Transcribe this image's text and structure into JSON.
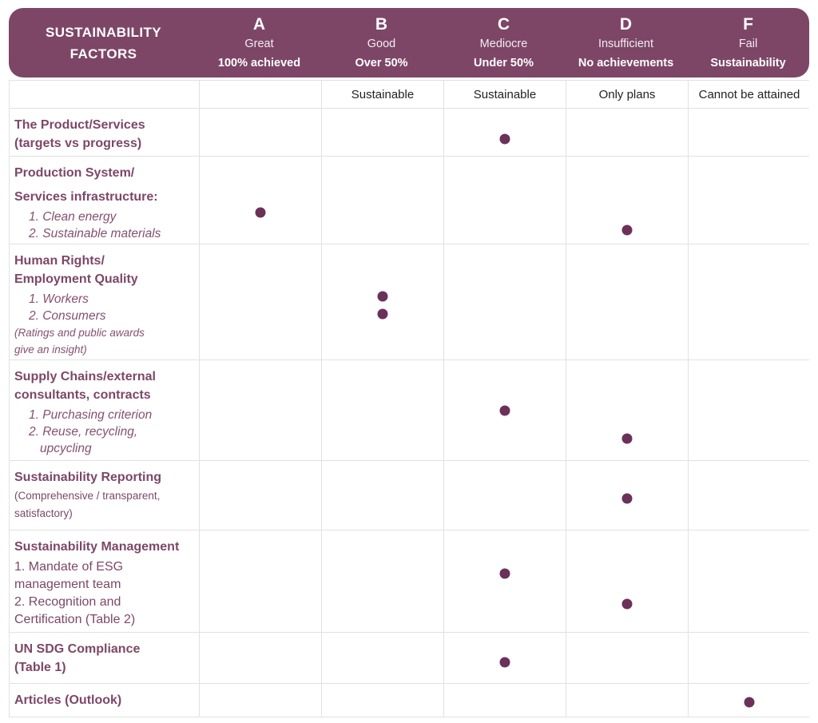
{
  "colors": {
    "band": "#7d4667",
    "label_text": "#7d4768",
    "dot": "#6b3158",
    "grid": "#e1e1e3",
    "subheader_text": "#222222"
  },
  "header": {
    "title_line1": "SUSTAINABILITY",
    "title_line2": "FACTORS",
    "grades": [
      {
        "letter": "A",
        "name": "Great",
        "detail": "100% achieved",
        "sub": ""
      },
      {
        "letter": "B",
        "name": "Good",
        "detail": "Over 50%",
        "sub": "Sustainable"
      },
      {
        "letter": "C",
        "name": "Mediocre",
        "detail": "Under 50%",
        "sub": "Sustainable"
      },
      {
        "letter": "D",
        "name": "Insufficient",
        "detail": "No achievements",
        "sub": "Only plans"
      },
      {
        "letter": "F",
        "name": "Fail",
        "detail": "Sustainability",
        "sub": "Cannot be attained"
      }
    ]
  },
  "rows": [
    {
      "lines": [
        {
          "text": "The Product/Services",
          "style": "h"
        },
        {
          "text": "(targets vs progress)",
          "style": "h"
        }
      ],
      "dots": [
        {
          "col": "C",
          "v": 0.63
        }
      ]
    },
    {
      "lines": [
        {
          "text": "Production System/",
          "style": "h"
        },
        {
          "text": "Services infrastructure:",
          "style": "h2"
        },
        {
          "text": "1. Clean energy",
          "style": "i"
        },
        {
          "text": "2. Sustainable materials",
          "style": "i"
        }
      ],
      "dots": [
        {
          "col": "A",
          "v": 0.64
        },
        {
          "col": "D",
          "v": 0.84
        }
      ]
    },
    {
      "lines": [
        {
          "text": "Human Rights/",
          "style": "h"
        },
        {
          "text": "Employment Quality",
          "style": "h"
        },
        {
          "text": "1. Workers",
          "style": "i"
        },
        {
          "text": "2. Consumers",
          "style": "i"
        },
        {
          "text": "(Ratings and public awards",
          "style": "n"
        },
        {
          "text": "give an insight)",
          "style": "n"
        }
      ],
      "dots": [
        {
          "col": "B",
          "v": 0.45
        },
        {
          "col": "B",
          "v": 0.6
        }
      ]
    },
    {
      "lines": [
        {
          "text": "Supply Chains/external",
          "style": "h"
        },
        {
          "text": "consultants, contracts",
          "style": "h"
        },
        {
          "text": "1. Purchasing  criterion",
          "style": "i"
        },
        {
          "text": "2. Reuse, recycling,",
          "style": "i"
        },
        {
          "text": "upcycling",
          "style": "i2"
        }
      ],
      "dots": [
        {
          "col": "C",
          "v": 0.5
        },
        {
          "col": "D",
          "v": 0.78
        }
      ]
    },
    {
      "lines": [
        {
          "text": "Sustainability Reporting",
          "style": "h"
        },
        {
          "text": "(Comprehensive / transparent,",
          "style": "np"
        },
        {
          "text": "satisfactory)",
          "style": "np"
        }
      ],
      "dots": [
        {
          "col": "D",
          "v": 0.54
        }
      ]
    },
    {
      "lines": [
        {
          "text": "Sustainability Management",
          "style": "h"
        },
        {
          "text": "1. Mandate of ESG",
          "style": "p"
        },
        {
          "text": "management team",
          "style": "p"
        },
        {
          "text": "2. Recognition and",
          "style": "p"
        },
        {
          "text": "Certification (Table 2)",
          "style": "p"
        }
      ],
      "dots": [
        {
          "col": "C",
          "v": 0.42
        },
        {
          "col": "D",
          "v": 0.72
        }
      ]
    },
    {
      "lines": [
        {
          "text": "UN SDG Compliance",
          "style": "h"
        },
        {
          "text": "(Table 1)",
          "style": "h"
        }
      ],
      "dots": [
        {
          "col": "C",
          "v": 0.58
        }
      ]
    },
    {
      "lines": [
        {
          "text": "Articles (Outlook)",
          "style": "h"
        }
      ],
      "dots": [
        {
          "col": "F",
          "v": 0.55
        }
      ]
    }
  ],
  "chart_data": {
    "type": "table",
    "title": "SUSTAINABILITY FACTORS",
    "columns": [
      {
        "grade": "A",
        "meaning": "Great",
        "criteria": "100% achieved"
      },
      {
        "grade": "B",
        "meaning": "Good",
        "criteria": "Over 50% Sustainable"
      },
      {
        "grade": "C",
        "meaning": "Mediocre",
        "criteria": "Under 50% Sustainable"
      },
      {
        "grade": "D",
        "meaning": "Insufficient",
        "criteria": "No achievements, Only plans"
      },
      {
        "grade": "F",
        "meaning": "Fail",
        "criteria": "Sustainability Cannot be attained"
      }
    ],
    "rows": [
      {
        "factor": "The Product/Services (targets vs progress)",
        "marks": [
          "C"
        ]
      },
      {
        "factor": "Production System/Services infrastructure: 1. Clean energy 2. Sustainable materials",
        "marks": [
          "A",
          "D"
        ]
      },
      {
        "factor": "Human Rights/Employment Quality 1. Workers 2. Consumers (Ratings and public awards give an insight)",
        "marks": [
          "B",
          "B"
        ]
      },
      {
        "factor": "Supply Chains/external consultants, contracts 1. Purchasing criterion 2. Reuse, recycling, upcycling",
        "marks": [
          "C",
          "D"
        ]
      },
      {
        "factor": "Sustainability Reporting (Comprehensive / transparent, satisfactory)",
        "marks": [
          "D"
        ]
      },
      {
        "factor": "Sustainability Management 1. Mandate of ESG management team 2. Recognition and Certification (Table 2)",
        "marks": [
          "C",
          "D"
        ]
      },
      {
        "factor": "UN SDG Compliance (Table 1)",
        "marks": [
          "C"
        ]
      },
      {
        "factor": "Articles (Outlook)",
        "marks": [
          "F"
        ]
      }
    ]
  }
}
